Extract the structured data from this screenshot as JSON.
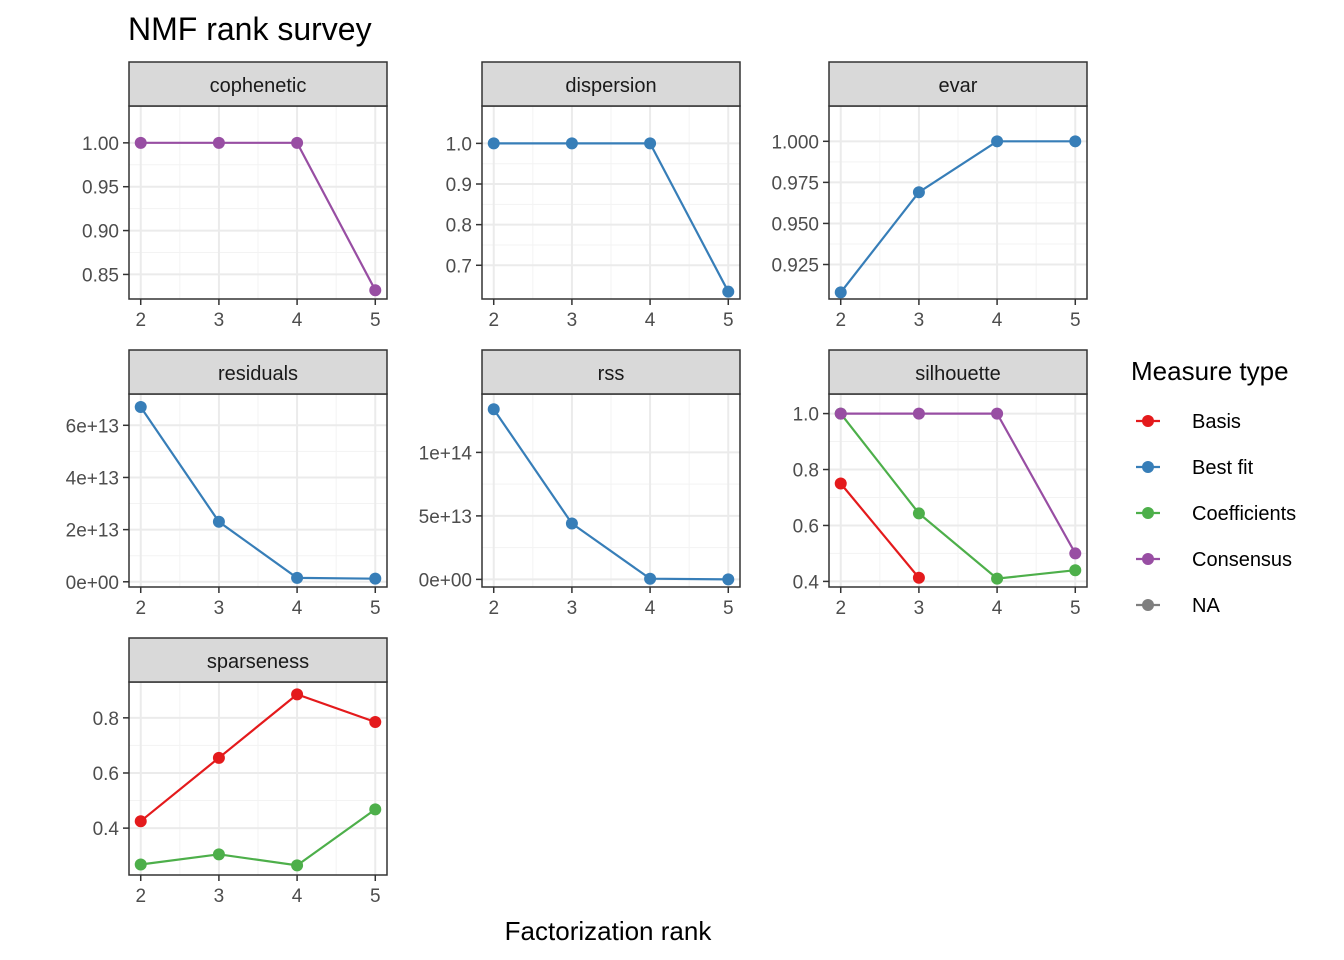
{
  "chart_data": {
    "type": "line",
    "title": "NMF rank survey",
    "xlabel": "Factorization rank",
    "x": [
      2,
      3,
      4,
      5
    ],
    "legend": {
      "title": "Measure type",
      "position": "right",
      "entries": [
        {
          "name": "Basis",
          "color": "#e41a1c"
        },
        {
          "name": "Best fit",
          "color": "#377eb8"
        },
        {
          "name": "Coefficients",
          "color": "#4daf4a"
        },
        {
          "name": "Consensus",
          "color": "#984ea3"
        },
        {
          "name": "NA",
          "color": "#7f7f7f"
        }
      ]
    },
    "panels": [
      {
        "name": "cophenetic",
        "ylim": [
          0.822,
          1.042
        ],
        "yticks": [
          0.85,
          0.9,
          0.95,
          1.0
        ],
        "yticklabels": [
          "0.85",
          "0.90",
          "0.95",
          "1.00"
        ],
        "series": [
          {
            "type": "Consensus",
            "values": [
              1.0,
              1.0,
              1.0,
              0.832
            ]
          }
        ]
      },
      {
        "name": "dispersion",
        "ylim": [
          0.617,
          1.092
        ],
        "yticks": [
          0.7,
          0.8,
          0.9,
          1.0
        ],
        "yticklabels": [
          "0.7",
          "0.8",
          "0.9",
          "1.0"
        ],
        "series": [
          {
            "type": "Best fit",
            "values": [
              1.0,
              1.0,
              1.0,
              0.635
            ]
          }
        ]
      },
      {
        "name": "evar",
        "ylim": [
          0.904,
          1.0215
        ],
        "yticks": [
          0.925,
          0.95,
          0.975,
          1.0
        ],
        "yticklabels": [
          "0.925",
          "0.950",
          "0.975",
          "1.000"
        ],
        "series": [
          {
            "type": "Best fit",
            "values": [
              0.908,
              0.969,
              1.0,
              1.0
            ]
          }
        ]
      },
      {
        "name": "residuals",
        "ylim": [
          -2000000000000.0,
          72000000000000.0
        ],
        "yticks": [
          0,
          20000000000000.0,
          40000000000000.0,
          60000000000000.0
        ],
        "yticklabels": [
          "0e+00",
          "2e+13",
          "4e+13",
          "6e+13"
        ],
        "series": [
          {
            "type": "Best fit",
            "values": [
              67000000000000.0,
              23000000000000.0,
              1500000000000.0,
              1200000000000.0
            ]
          }
        ]
      },
      {
        "name": "rss",
        "ylim": [
          -6000000000000.0,
          146000000000000.0
        ],
        "yticks": [
          0,
          50000000000000.0,
          100000000000000.0
        ],
        "yticklabels": [
          "0e+00",
          "5e+13",
          "1e+14"
        ],
        "series": [
          {
            "type": "Best fit",
            "values": [
              134000000000000.0,
              44000000000000.0,
              500000000000.0,
              0.0
            ]
          }
        ]
      },
      {
        "name": "silhouette",
        "ylim": [
          0.38,
          1.07
        ],
        "yticks": [
          0.4,
          0.6,
          0.8,
          1.0
        ],
        "yticklabels": [
          "0.4",
          "0.6",
          "0.8",
          "1.0"
        ],
        "series": [
          {
            "type": "Basis",
            "values": [
              0.75,
              0.413,
              null,
              null
            ]
          },
          {
            "type": "Coefficients",
            "values": [
              1.0,
              0.643,
              0.41,
              0.44
            ]
          },
          {
            "type": "Consensus",
            "values": [
              1.0,
              1.0,
              1.0,
              0.5
            ]
          }
        ]
      },
      {
        "name": "sparseness",
        "ylim": [
          0.23,
          0.93
        ],
        "yticks": [
          0.4,
          0.6,
          0.8
        ],
        "yticklabels": [
          "0.4",
          "0.6",
          "0.8"
        ],
        "series": [
          {
            "type": "Basis",
            "values": [
              0.425,
              0.655,
              0.885,
              0.785
            ]
          },
          {
            "type": "Coefficients",
            "values": [
              0.268,
              0.305,
              0.265,
              0.468
            ]
          }
        ]
      }
    ]
  }
}
